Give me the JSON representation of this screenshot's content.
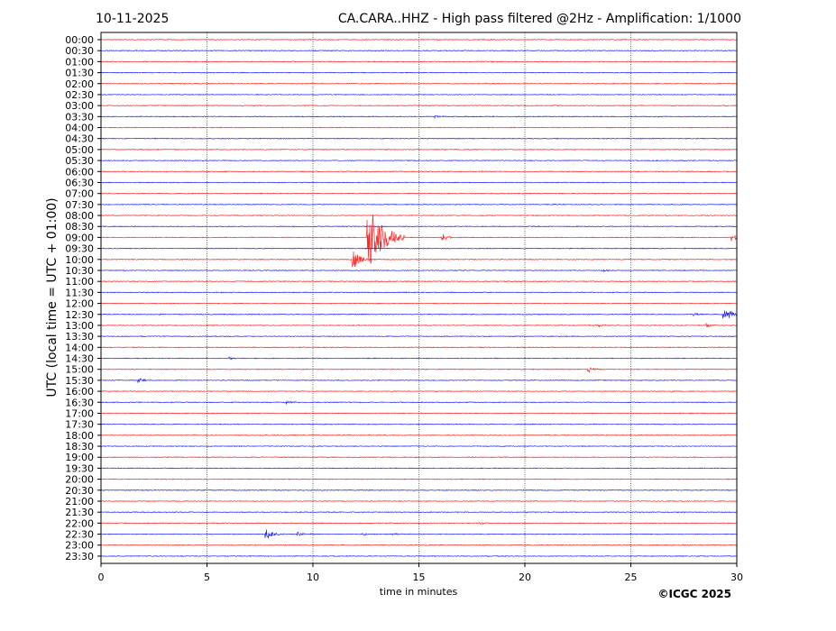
{
  "chart_data": {
    "type": "line",
    "date": "10-11-2025",
    "title": "CA.CARA..HHZ - High pass filtered @2Hz - Amplification: 1/1000",
    "xlabel": "time in minutes",
    "ylabel": "UTC (local time = UTC + 01:00)",
    "xlim": [
      0,
      30
    ],
    "xticks": [
      "0",
      "5",
      "10",
      "15",
      "20",
      "25",
      "30"
    ],
    "rows": [
      "00:00",
      "00:30",
      "01:00",
      "01:30",
      "02:00",
      "02:30",
      "03:00",
      "03:30",
      "04:00",
      "04:30",
      "05:00",
      "05:30",
      "06:00",
      "06:30",
      "07:00",
      "07:30",
      "08:00",
      "08:30",
      "09:00",
      "09:30",
      "10:00",
      "10:30",
      "11:00",
      "11:30",
      "12:00",
      "12:30",
      "13:00",
      "13:30",
      "14:00",
      "14:30",
      "15:00",
      "15:30",
      "16:00",
      "16:30",
      "17:00",
      "17:30",
      "18:00",
      "18:30",
      "19:00",
      "19:30",
      "20:00",
      "20:30",
      "21:00",
      "21:30",
      "22:00",
      "22:30",
      "23:00",
      "23:30"
    ],
    "grid": "vertical dotted every 5 minutes",
    "colors": {
      "hour_trace": "#ff0000",
      "half_hour_trace": "#0000ff"
    },
    "events_note_units": "amplitude relative to trace spacing",
    "events": [
      {
        "row": "03:30",
        "minute": 15.8,
        "amplitude": 0.15
      },
      {
        "row": "09:00",
        "minute": 12.6,
        "amplitude": 3.0
      },
      {
        "row": "09:00",
        "minute": 16.1,
        "amplitude": 0.4
      },
      {
        "row": "09:00",
        "minute": 29.8,
        "amplitude": 0.4
      },
      {
        "row": "10:00",
        "minute": 11.9,
        "amplitude": 0.9
      },
      {
        "row": "10:30",
        "minute": 23.7,
        "amplitude": 0.15
      },
      {
        "row": "12:30",
        "minute": 28.0,
        "amplitude": 0.15
      },
      {
        "row": "12:30",
        "minute": 29.4,
        "amplitude": 0.4
      },
      {
        "row": "12:30",
        "minute": 29.7,
        "amplitude": 0.35
      },
      {
        "row": "13:00",
        "minute": 23.4,
        "amplitude": 0.2
      },
      {
        "row": "13:00",
        "minute": 28.6,
        "amplitude": 0.2
      },
      {
        "row": "14:30",
        "minute": 6.1,
        "amplitude": 0.12
      },
      {
        "row": "15:00",
        "minute": 23.0,
        "amplitude": 0.3
      },
      {
        "row": "15:30",
        "minute": 1.8,
        "amplitude": 0.25
      },
      {
        "row": "16:00",
        "minute": 26.9,
        "amplitude": 0.1
      },
      {
        "row": "16:30",
        "minute": 8.8,
        "amplitude": 0.2
      },
      {
        "row": "22:00",
        "minute": 17.9,
        "amplitude": 0.1
      },
      {
        "row": "22:30",
        "minute": 7.8,
        "amplitude": 0.6
      },
      {
        "row": "22:30",
        "minute": 9.3,
        "amplitude": 0.3
      },
      {
        "row": "22:30",
        "minute": 12.4,
        "amplitude": 0.1
      },
      {
        "row": "22:30",
        "minute": 13.8,
        "amplitude": 0.1
      }
    ]
  },
  "copyright": "©ICGC 2025"
}
